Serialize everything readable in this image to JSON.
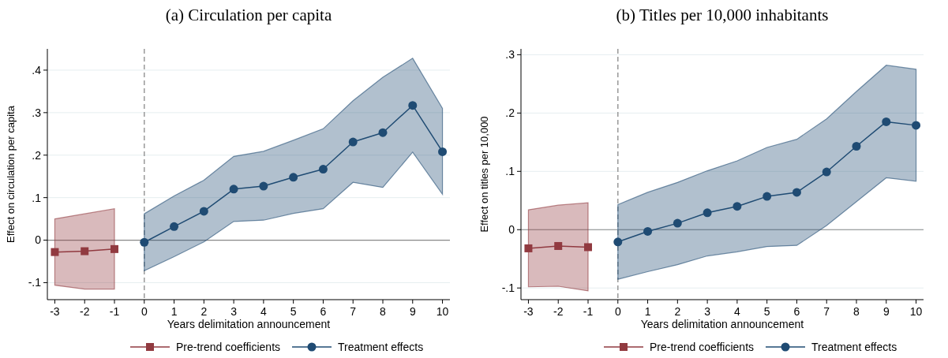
{
  "chart_data": [
    {
      "type": "line",
      "title": "(a) Circulation per capita",
      "xlabel": "Years delimitation announcement",
      "ylabel": "Effect on circulation per capita",
      "xlim": [
        -3.25,
        10.25
      ],
      "xticks": [
        -3,
        -2,
        -1,
        0,
        1,
        2,
        3,
        4,
        5,
        6,
        7,
        8,
        9,
        10
      ],
      "ylim": [
        -0.14,
        0.45
      ],
      "yticks": [
        {
          "value": -0.1,
          "label": "-.1"
        },
        0,
        {
          "value": 0.1,
          "label": ".1"
        },
        {
          "value": 0.2,
          "label": ".2"
        },
        {
          "value": 0.3,
          "label": ".3"
        },
        {
          "value": 0.4,
          "label": ".4"
        }
      ],
      "grid": "y",
      "legend": "bottom",
      "ref_lines": [
        {
          "axis": "x",
          "value": 0,
          "color": "#999999",
          "line_style": "dashed"
        },
        {
          "axis": "y",
          "value": 0,
          "color": "#888888",
          "line_style": "solid"
        }
      ],
      "series": [
        {
          "name": "Pre-trend coefficients",
          "color": "#913a40",
          "marker": "square",
          "x": [
            -3,
            -2,
            -1
          ],
          "values": [
            -0.028,
            -0.026,
            -0.021
          ],
          "lower": [
            -0.106,
            -0.115,
            -0.115
          ],
          "upper": [
            0.05,
            0.062,
            0.074
          ]
        },
        {
          "name": "Treatment effects",
          "color": "#1f4b73",
          "marker": "circle",
          "x": [
            0,
            1,
            2,
            3,
            4,
            5,
            6,
            7,
            8,
            9,
            10
          ],
          "values": [
            -0.005,
            0.032,
            0.068,
            0.12,
            0.127,
            0.148,
            0.167,
            0.231,
            0.253,
            0.317,
            0.208
          ],
          "lower": [
            -0.072,
            -0.039,
            -0.004,
            0.044,
            0.047,
            0.063,
            0.074,
            0.136,
            0.124,
            0.207,
            0.108
          ],
          "upper": [
            0.062,
            0.104,
            0.141,
            0.197,
            0.209,
            0.235,
            0.262,
            0.328,
            0.383,
            0.428,
            0.31
          ]
        }
      ]
    },
    {
      "type": "line",
      "title": "(b) Titles per 10,000 inhabitants",
      "xlabel": "Years delimitation announcement",
      "ylabel": "Effect on titles per 10,000",
      "xlim": [
        -3.25,
        10.25
      ],
      "xticks": [
        -3,
        -2,
        -1,
        0,
        1,
        2,
        3,
        4,
        5,
        6,
        7,
        8,
        9,
        10
      ],
      "ylim": [
        -0.12,
        0.31
      ],
      "yticks": [
        {
          "value": -0.1,
          "label": "-.1"
        },
        0,
        {
          "value": 0.1,
          "label": ".1"
        },
        {
          "value": 0.2,
          "label": ".2"
        },
        {
          "value": 0.3,
          "label": ".3"
        }
      ],
      "grid": "y",
      "legend": "bottom",
      "ref_lines": [
        {
          "axis": "x",
          "value": 0,
          "color": "#999999",
          "line_style": "dashed"
        },
        {
          "axis": "y",
          "value": 0,
          "color": "#888888",
          "line_style": "solid"
        }
      ],
      "series": [
        {
          "name": "Pre-trend coefficients",
          "color": "#913a40",
          "marker": "square",
          "x": [
            -3,
            -2,
            -1
          ],
          "values": [
            -0.032,
            -0.028,
            -0.03
          ],
          "lower": [
            -0.098,
            -0.097,
            -0.105
          ],
          "upper": [
            0.034,
            0.042,
            0.046
          ]
        },
        {
          "name": "Treatment effects",
          "color": "#1f4b73",
          "marker": "circle",
          "x": [
            0,
            1,
            2,
            3,
            4,
            5,
            6,
            7,
            8,
            9,
            10
          ],
          "values": [
            -0.021,
            -0.003,
            0.011,
            0.029,
            0.04,
            0.057,
            0.064,
            0.099,
            0.143,
            0.185,
            0.179
          ],
          "lower": [
            -0.085,
            -0.072,
            -0.06,
            -0.045,
            -0.038,
            -0.029,
            -0.027,
            0.007,
            0.048,
            0.089,
            0.083
          ],
          "upper": [
            0.043,
            0.064,
            0.081,
            0.101,
            0.118,
            0.141,
            0.155,
            0.19,
            0.237,
            0.282,
            0.275
          ]
        }
      ]
    }
  ]
}
